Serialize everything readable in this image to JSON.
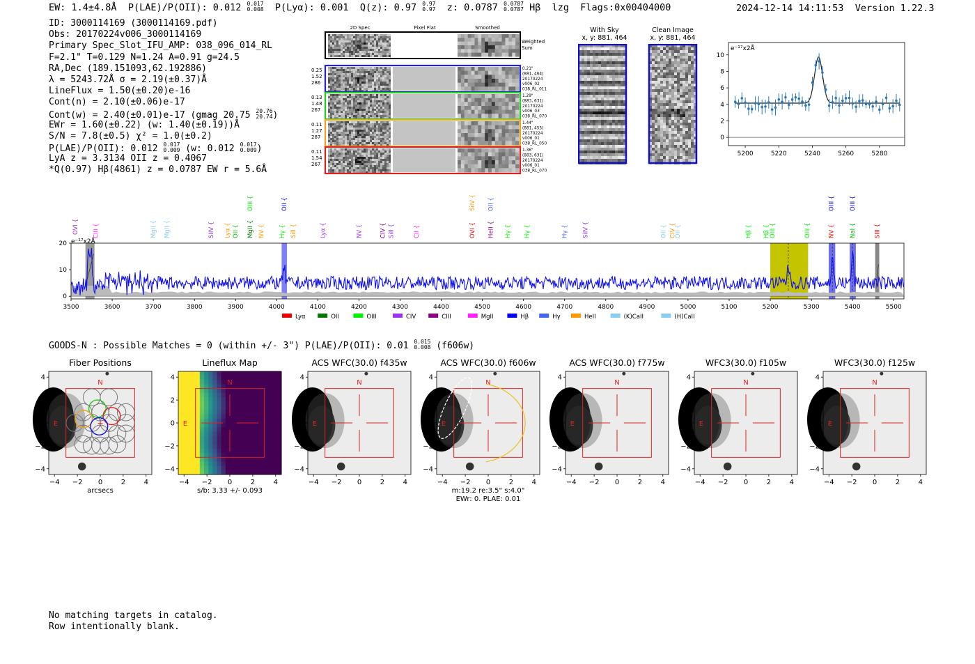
{
  "header": {
    "ew": "EW: 1.4±4.8Å",
    "plae_label": "P(LAE)/P(OII): 0.012",
    "plae_hi": "0.017",
    "plae_lo": "0.008",
    "plya": "P(Lyα): 0.001",
    "qz_label": "Q(z): 0.97",
    "qz_hi": "0.97",
    "qz_lo": "0.97",
    "z_label": "z: 0.0787",
    "z_hi": "0.0787",
    "z_lo": "0.0787",
    "line": "Hβ",
    "lzg": "lzg",
    "flags": "Flags:0x00404000",
    "datetime": "2024-12-14 14:11:53",
    "version": "Version 1.22.3"
  },
  "info": {
    "id": "ID: 3000114169 (3000114169.pdf)",
    "obs": "Obs: 20170224v006_3000114169",
    "primary": "Primary Spec_Slot_IFU_AMP: 038_096_014_RL",
    "params": "F=2.1\"  T=0.129  N=1.24  A=0.91  g=24.5",
    "radec": "RA,Dec (189.151093,62.192886)",
    "lambda": "λ = 5243.72Å  σ = 2.19(±0.37)Å",
    "lineflux": "LineFlux = 1.50(±0.20)e-16",
    "contn": "Cont(n) = 2.10(±0.06)e-17",
    "contw": "Cont(w) = 2.40(±0.01)e-17 (gmag 20.75",
    "contw_hi": "20.76",
    "contw_lo": "20.74",
    "contw_end": ")",
    "ewr": "EWr = 1.60(±0.22) (w: 1.40(±0.19))Å",
    "sn": "S/N = 7.8(±0.5)  χ² = 1.0(±0.2)",
    "plae": "P(LAE)/P(OII): 0.012",
    "plae_hi": "0.017",
    "plae_lo": "0.009",
    "plae_w": "(w: 0.012",
    "plae_w_hi": "0.017",
    "plae_w_lo": "0.009",
    "plae_w_end": ")",
    "lya": "LyA z = 3.3134  OII z = 0.4067",
    "q": "*Q(0.97) Hβ(4861) z = 0.0787  EW r = 5.6Å"
  },
  "cutouts": {
    "col_2d": "2D Spec",
    "col_flat": "Pixel Flat",
    "col_smooth": "Smoothed",
    "weighted": "Weighted",
    "sum": "Sum",
    "rows": [
      {
        "left": [
          "0.25",
          "1.52",
          "286"
        ],
        "right": [
          "0.21\"",
          "(881, 464)",
          "20170224",
          "v006_02",
          "038_RL_011"
        ],
        "color": "#2222dd"
      },
      {
        "left": [
          "0.13",
          "1.48",
          "267"
        ],
        "right": [
          "1.29\"",
          "(883, 631)",
          "20170224",
          "v006_03",
          "038_RL_070"
        ],
        "color": "#22cc22"
      },
      {
        "left": [
          "0.11",
          "1.27",
          "287"
        ],
        "right": [
          "1.44\"",
          "(881, 455)",
          "20170224",
          "v006_01",
          "038_RL_050"
        ],
        "color": "#f0a020"
      },
      {
        "left": [
          "0.11",
          "1.54",
          "267"
        ],
        "right": [
          "1.36\"",
          "(883, 631)",
          "20170224",
          "v006_01",
          "038_RL_070"
        ],
        "color": "#dd2222"
      }
    ]
  },
  "sky": {
    "with_sky": "With Sky",
    "with_sky_xy": "x, y: 881, 464",
    "clean": "Clean Image",
    "clean_xy": "x, y: 881, 464"
  },
  "zoom_plot": {
    "unit": "e⁻¹⁷x2Å",
    "yticks": [
      "0",
      "2",
      "4",
      "6",
      "8",
      "10"
    ],
    "xticks": [
      "5200",
      "5220",
      "5240",
      "5260",
      "5280"
    ]
  },
  "full_spec": {
    "unit": "e⁻¹⁷x2Å",
    "yticks": [
      "0",
      "10",
      "20"
    ],
    "xticks": [
      "3500",
      "3600",
      "3700",
      "3800",
      "3900",
      "4000",
      "4100",
      "4200",
      "4300",
      "4400",
      "4500",
      "4600",
      "4700",
      "4800",
      "4900",
      "5000",
      "5100",
      "5200",
      "5300",
      "5400",
      "5500"
    ],
    "legend": [
      {
        "label": "Lyα",
        "color": "#ee0000"
      },
      {
        "label": "OII",
        "color": "#007700"
      },
      {
        "label": "OIII",
        "color": "#00ee00"
      },
      {
        "label": "CIV",
        "color": "#9933ee"
      },
      {
        "label": "CIII",
        "color": "#880088"
      },
      {
        "label": "MgII",
        "color": "#ff22ff"
      },
      {
        "label": "Hβ",
        "color": "#0000ee"
      },
      {
        "label": "Hγ",
        "color": "#4466ee"
      },
      {
        "label": "HeII",
        "color": "#ff9900"
      },
      {
        "label": "(K)CaII",
        "color": "#88ccee"
      },
      {
        "label": "(H)CaII",
        "color": "#88ccee"
      }
    ],
    "lines": [
      {
        "label": "OVI",
        "color": "#9933ee",
        "x": 3510,
        "row": 1
      },
      {
        "label": "CIII",
        "color": "#ff22ff",
        "x": 3560,
        "row": 2
      },
      {
        "label": "MgII",
        "color": "#88ccee",
        "x": 3700,
        "row": 2
      },
      {
        "label": "MgII",
        "color": "#88ccee",
        "x": 3733,
        "row": 2
      },
      {
        "label": "SIIV",
        "color": "#9933ee",
        "x": 3840,
        "row": 2
      },
      {
        "label": "Lyα",
        "color": "#ff9900",
        "x": 3880,
        "row": 2
      },
      {
        "label": "OII",
        "color": "#00bb00",
        "x": 3900,
        "row": 2
      },
      {
        "label": "MgII",
        "color": "#007700",
        "x": 3935,
        "row": 2
      },
      {
        "label": "NV",
        "color": "#ff9900",
        "x": 3962,
        "row": 2
      },
      {
        "label": "OIII",
        "color": "#00ee00",
        "x": 3935,
        "row": 0
      },
      {
        "label": "OII",
        "color": "#0000ee",
        "x": 4018,
        "row": 0
      },
      {
        "label": "Hγ",
        "color": "#00ee00",
        "x": 4013,
        "row": 2
      },
      {
        "label": "SiII",
        "color": "#ff9900",
        "x": 4040,
        "row": 2
      },
      {
        "label": "Lyα",
        "color": "#9933ee",
        "x": 4112,
        "row": 2
      },
      {
        "label": "NV",
        "color": "#9933ee",
        "x": 4200,
        "row": 2
      },
      {
        "label": "CIV",
        "color": "#880088",
        "x": 4258,
        "row": 2
      },
      {
        "label": "SiII",
        "color": "#9933ee",
        "x": 4278,
        "row": 2
      },
      {
        "label": "CII",
        "color": "#ff22ff",
        "x": 4340,
        "row": 2
      },
      {
        "label": "SiIV",
        "color": "#ff9900",
        "x": 4475,
        "row": 0
      },
      {
        "label": "OII",
        "color": "#4466ee",
        "x": 4520,
        "row": 0
      },
      {
        "label": "OVI",
        "color": "#ee0000",
        "x": 4475,
        "row": 2
      },
      {
        "label": "HeII",
        "color": "#880088",
        "x": 4520,
        "row": 2
      },
      {
        "label": "Hγ",
        "color": "#00ee00",
        "x": 4562,
        "row": 2
      },
      {
        "label": "Hγ",
        "color": "#00ee00",
        "x": 4608,
        "row": 2
      },
      {
        "label": "Hγ",
        "color": "#4466ee",
        "x": 4700,
        "row": 2
      },
      {
        "label": "SiIV",
        "color": "#9933ee",
        "x": 4750,
        "row": 2
      },
      {
        "label": "OII",
        "color": "#88ccee",
        "x": 4940,
        "row": 2
      },
      {
        "label": "CIV",
        "color": "#ff9900",
        "x": 4962,
        "row": 2
      },
      {
        "label": "OII",
        "color": "#88ccee",
        "x": 4975,
        "row": 2
      },
      {
        "label": "Hβ",
        "color": "#00ee00",
        "x": 5147,
        "row": 2
      },
      {
        "label": "Hβ",
        "color": "#00ee00",
        "x": 5190,
        "row": 2
      },
      {
        "label": "OIII",
        "color": "#00ee00",
        "x": 5205,
        "row": 2
      },
      {
        "label": "OIII",
        "color": "#00ee00",
        "x": 5290,
        "row": 2
      },
      {
        "label": "OIII",
        "color": "#0000ee",
        "x": 5348,
        "row": 0
      },
      {
        "label": "NV",
        "color": "#ee0000",
        "x": 5348,
        "row": 2
      },
      {
        "label": "OIII",
        "color": "#0000ee",
        "x": 5400,
        "row": 0
      },
      {
        "label": "NaI",
        "color": "#00bb00",
        "x": 5400,
        "row": 2
      },
      {
        "label": "SIII",
        "color": "#ee0000",
        "x": 5460,
        "row": 2
      }
    ]
  },
  "goods": {
    "line_a": "GOODS-N : Possible Matches = 0 (within +/- 3\")  P(LAE)/P(OII): 0.01",
    "hi": "0.015",
    "lo": "0.008",
    "line_b": "(f606w)"
  },
  "imaging": {
    "panels": [
      {
        "title": "Fiber Positions",
        "xlabel": "arcsecs"
      },
      {
        "title": "Lineflux Map",
        "xlabel": "s/b: 3.33 +/- 0.093"
      },
      {
        "title": "ACS WFC(30.0) f435w",
        "xlabel": ""
      },
      {
        "title": "ACS WFC(30.0) f606w",
        "xlabel": "m:19.2  re:3.5\"  s:4.0\"",
        "xlabel2": "EWr: 0. PLAE: 0.01"
      },
      {
        "title": "ACS WFC(30.0) f775w",
        "xlabel": ""
      },
      {
        "title": "WFC3(30.0) f105w",
        "xlabel": ""
      },
      {
        "title": "WFC3(30.0) f125w",
        "xlabel": ""
      }
    ],
    "ticks": [
      "−4",
      "−2",
      "0",
      "2",
      "4"
    ],
    "n_label": "N",
    "e_label": "E"
  },
  "footer": {
    "line1": "No matching targets in catalog.",
    "line2": "Row intentionally blank."
  }
}
